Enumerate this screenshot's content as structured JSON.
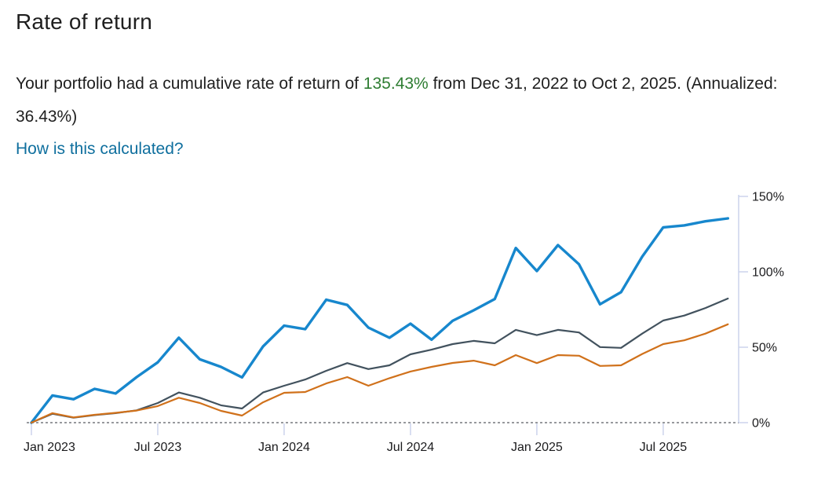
{
  "page": {
    "title": "Rate of return",
    "summary": {
      "before": "Your portfolio had a cumulative rate of return of ",
      "value": "135.43%",
      "after": " from Dec 31, 2022 to Oct 2, 2025. (Annualized: 36.43%)"
    },
    "link": "How is this calculated?"
  },
  "colors": {
    "positive_green": "#2e7d32",
    "link_blue": "#0f6f9e",
    "axis_light": "#ccd3ec",
    "zero_line_gray": "#97999d",
    "tick_label": "#1b1b1d",
    "blue_series": "#1787cd",
    "gray_series": "#42525e",
    "orange_series": "#d0711b"
  },
  "chart_data": {
    "type": "line",
    "title": "",
    "xlabel": "",
    "ylabel": "",
    "x_unit": "months since Dec 31, 2022",
    "x_range_dates": [
      "Dec 31, 2022",
      "Oct 2, 2025"
    ],
    "ylim": [
      0,
      150
    ],
    "y_axis_side": "right",
    "grid": false,
    "legend": "none",
    "zero_line_style": "dashed",
    "y_ticks": [
      {
        "value": 0,
        "label": "0%"
      },
      {
        "value": 50,
        "label": "50%"
      },
      {
        "value": 100,
        "label": "100%"
      },
      {
        "value": 150,
        "label": "150%"
      }
    ],
    "x_ticks": [
      {
        "month": 0,
        "label": "Jan 2023"
      },
      {
        "month": 6,
        "label": "Jul 2023"
      },
      {
        "month": 12,
        "label": "Jan 2024"
      },
      {
        "month": 18,
        "label": "Jul 2024"
      },
      {
        "month": 24,
        "label": "Jan 2025"
      },
      {
        "month": 30,
        "label": "Jul 2025"
      }
    ],
    "x": [
      0,
      1,
      2,
      3,
      4,
      5,
      6,
      7,
      8,
      9,
      10,
      11,
      12,
      13,
      14,
      15,
      16,
      17,
      18,
      19,
      20,
      21,
      22,
      23,
      24,
      25,
      26,
      27,
      28,
      29,
      30,
      31,
      32,
      33.07
    ],
    "series": [
      {
        "name": "blue",
        "color": "#1787cd",
        "stroke_width": 3.4,
        "values": [
          0,
          18.0,
          15.5,
          22.4,
          19.3,
          30.2,
          40.0,
          56.3,
          42.0,
          37.0,
          30.0,
          50.5,
          64.3,
          62.0,
          81.5,
          78.0,
          63.0,
          56.3,
          65.6,
          55.0,
          67.5,
          74.5,
          82.0,
          115.8,
          100.5,
          117.7,
          105.0,
          78.5,
          86.5,
          110.0,
          129.5,
          130.8,
          133.5,
          135.43
        ]
      },
      {
        "name": "dark-gray",
        "color": "#42525e",
        "stroke_width": 2.2,
        "values": [
          0,
          5.9,
          3.3,
          5.0,
          6.3,
          8.2,
          13.0,
          20.0,
          16.5,
          11.5,
          9.4,
          20.0,
          24.5,
          28.6,
          34.4,
          39.5,
          35.5,
          38.0,
          45.3,
          48.4,
          52.1,
          54.2,
          52.6,
          61.5,
          58.0,
          61.5,
          59.8,
          50.1,
          49.6,
          59.0,
          67.7,
          71.0,
          76.0,
          82.3
        ]
      },
      {
        "name": "orange",
        "color": "#d0711b",
        "stroke_width": 2.2,
        "values": [
          0,
          6.3,
          3.5,
          5.2,
          6.5,
          8.0,
          11.0,
          16.5,
          13.0,
          7.8,
          4.7,
          13.5,
          19.8,
          20.3,
          26.0,
          30.2,
          24.5,
          29.5,
          33.9,
          37.0,
          39.6,
          41.1,
          38.0,
          44.8,
          39.5,
          44.8,
          44.4,
          37.6,
          38.0,
          45.5,
          52.1,
          54.6,
          59.0,
          65.2
        ]
      }
    ]
  }
}
